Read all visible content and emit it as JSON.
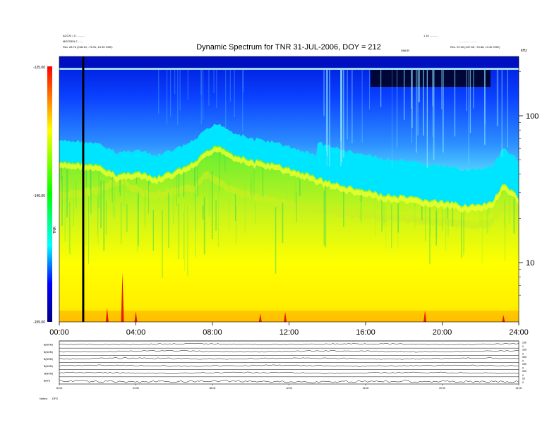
{
  "chart_data": {
    "type": "heatmap",
    "title": "Dynamic Spectrum for TNR 31-JUL-2006, DOY = 212",
    "header_left": [
      "ACCN = 0 ...........",
      "MGFSEN 2 ......",
      "Rev. 28.76 (248.13, -75.91, 13.39 GSE)"
    ],
    "header_right": [
      "1 10 ..........",
      "... ...... ... ... ....",
      "Rev. 29.30 (247.98, -75.88, 13.32 GSE)"
    ],
    "header_mid": "DMDB",
    "x_unit": "UT",
    "x_range_hours": [
      0,
      24
    ],
    "x_ticks": [
      "00:00",
      "04:00",
      "08:00",
      "12:00",
      "16:00",
      "20:00",
      "24:00"
    ],
    "y_label": "kHz",
    "y_scale": "log",
    "y_ticks": [
      "100",
      "10"
    ],
    "colorbar": {
      "label": "TNR",
      "range": [
        -155.0,
        -125.0
      ],
      "ticks": [
        "-125.00",
        "-140.00",
        "-155.00"
      ]
    },
    "marker_time": "01:15",
    "upper_boundary_khz": [
      [
        0.0,
        48
      ],
      [
        1.0,
        48
      ],
      [
        2.0,
        46
      ],
      [
        3.0,
        40
      ],
      [
        4.0,
        42
      ],
      [
        5.0,
        38
      ],
      [
        6.0,
        42
      ],
      [
        7.0,
        48
      ],
      [
        7.6,
        56
      ],
      [
        8.3,
        64
      ],
      [
        9.0,
        56
      ],
      [
        10.0,
        50
      ],
      [
        11.0,
        48
      ],
      [
        12.0,
        44
      ],
      [
        13.0,
        40
      ],
      [
        14.0,
        36
      ],
      [
        15.0,
        33
      ],
      [
        16.0,
        31
      ],
      [
        17.0,
        29
      ],
      [
        18.0,
        28
      ],
      [
        19.0,
        27
      ],
      [
        20.0,
        26
      ],
      [
        21.0,
        25
      ],
      [
        22.0,
        24.5
      ],
      [
        22.6,
        26
      ],
      [
        23.2,
        34
      ],
      [
        24.0,
        28
      ]
    ],
    "yellow_boundary_khz": [
      [
        0.0,
        30
      ],
      [
        1.0,
        31
      ],
      [
        2.0,
        33
      ],
      [
        3.0,
        37
      ],
      [
        3.3,
        38
      ],
      [
        4.0,
        33
      ],
      [
        5.0,
        30
      ],
      [
        6.0,
        32
      ],
      [
        7.0,
        34
      ],
      [
        7.7,
        42
      ],
      [
        8.3,
        38
      ],
      [
        9.0,
        33
      ],
      [
        10.0,
        30
      ],
      [
        11.0,
        28
      ],
      [
        12.0,
        26
      ],
      [
        13.0,
        25
      ],
      [
        14.0,
        24
      ],
      [
        15.0,
        23
      ],
      [
        16.0,
        22
      ],
      [
        17.0,
        21.5
      ],
      [
        18.0,
        21
      ],
      [
        19.0,
        20.5
      ],
      [
        20.0,
        20
      ],
      [
        21.0,
        19.5
      ],
      [
        22.0,
        19
      ],
      [
        22.6,
        20
      ],
      [
        23.2,
        25
      ],
      [
        24.0,
        25
      ]
    ],
    "lower_panels": [
      {
        "label": "B(NOM)",
        "ticks": [
          "250",
          "0"
        ]
      },
      {
        "label": "B(NOM)",
        "ticks": [
          "250",
          "0"
        ]
      },
      {
        "label": "B(NOM)",
        "ticks": [
          "500",
          "0"
        ]
      },
      {
        "label": "B(NOM)",
        "ticks": [
          "250",
          "0"
        ]
      },
      {
        "label": "N(NOM)",
        "ticks": [
          "500",
          "0"
        ]
      },
      {
        "label": "B(NT)",
        "ticks": [
          "50",
          "0"
        ]
      }
    ],
    "lower_x_ticks": [
      "00:00",
      "04:00",
      "08:00",
      "12:00",
      "16:00",
      "20:00",
      "24:00"
    ],
    "footer_left": [
      "Notes:",
      "DFS"
    ]
  }
}
